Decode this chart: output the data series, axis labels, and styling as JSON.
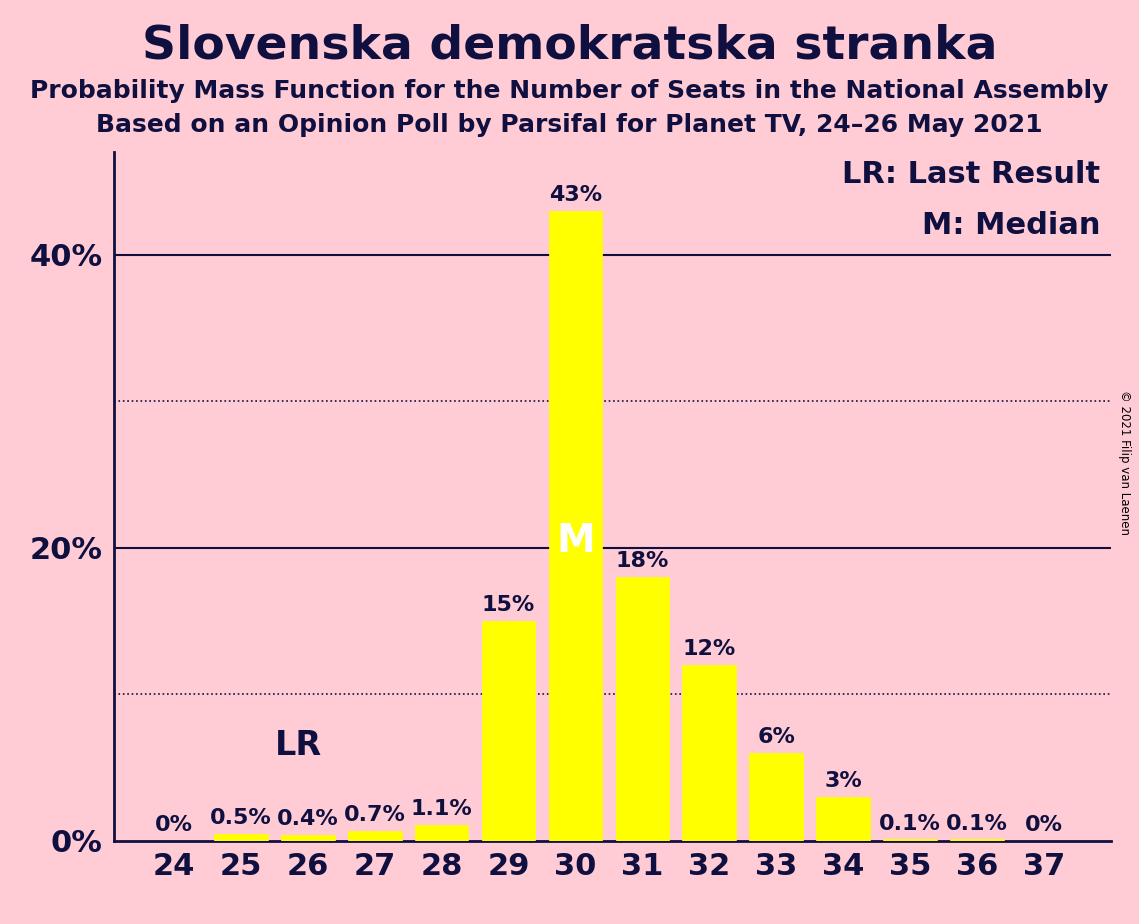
{
  "title": "Slovenska demokratska stranka",
  "subtitle1": "Probability Mass Function for the Number of Seats in the National Assembly",
  "subtitle2": "Based on an Opinion Poll by Parsifal for Planet TV, 24–26 May 2021",
  "copyright": "© 2021 Filip van Laenen",
  "categories": [
    24,
    25,
    26,
    27,
    28,
    29,
    30,
    31,
    32,
    33,
    34,
    35,
    36,
    37
  ],
  "values": [
    0.0,
    0.5,
    0.4,
    0.7,
    1.1,
    15.0,
    43.0,
    18.0,
    12.0,
    6.0,
    3.0,
    0.1,
    0.1,
    0.0
  ],
  "bar_labels": [
    "0%",
    "0.5%",
    "0.4%",
    "0.7%",
    "1.1%",
    "15%",
    "43%",
    "18%",
    "12%",
    "6%",
    "3%",
    "0.1%",
    "0.1%",
    "0%"
  ],
  "bar_color": "#ffff00",
  "background_color": "#ffccd5",
  "text_color": "#101040",
  "median_seat": 30,
  "last_result_seat": 25,
  "legend_lr": "LR: Last Result",
  "legend_m": "M: Median",
  "ylim": [
    0,
    47
  ],
  "solid_yticks": [
    20,
    40
  ],
  "dotted_yticks": [
    10,
    30
  ],
  "ytick_labeled": [
    0,
    20,
    40
  ],
  "ytick_labels_map": {
    "0": "0%",
    "20": "20%",
    "40": "40%"
  },
  "title_fontsize": 34,
  "subtitle_fontsize": 18,
  "tick_fontsize": 22,
  "legend_fontsize": 22,
  "bar_label_fontsize": 16,
  "lr_label_fontsize": 24,
  "m_label_fontsize": 28
}
